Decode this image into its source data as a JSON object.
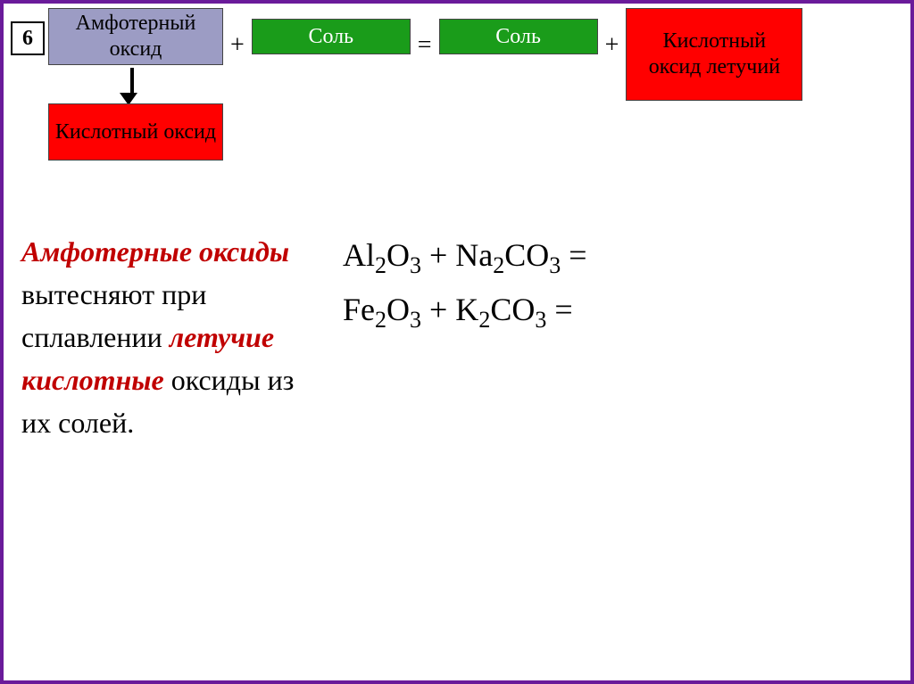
{
  "number": "6",
  "equation": {
    "box1": "Амфотерный оксид",
    "op1": "+",
    "box2": "Соль",
    "op2": "=",
    "box3": "Соль",
    "op3": "+",
    "box4": "Кислотный оксид летучий"
  },
  "arrow_box": "Кислотный оксид",
  "left_text": {
    "part1": "Амфотерные оксиды",
    "part2": " вытесняют при сплавлении ",
    "part3": "летучие кислотные",
    "part4": " оксиды из их солей."
  },
  "formulas": {
    "f1_a": "Al",
    "f1_b": "2",
    "f1_c": "O",
    "f1_d": "3",
    "f1_e": " + Na",
    "f1_f": "2",
    "f1_g": "CO",
    "f1_h": "3",
    "f1_i": " =",
    "f2_a": "Fe",
    "f2_b": "2",
    "f2_c": "O",
    "f2_d": "3",
    "f2_e": " + K",
    "f2_f": "2",
    "f2_g": "CO",
    "f2_h": "3",
    "f2_i": " ="
  },
  "colors": {
    "border": "#6a1b9a",
    "purple_box": "#9c9cc4",
    "green_box": "#1a9c1a",
    "red_box": "#ff0000",
    "red_text": "#c00000"
  }
}
